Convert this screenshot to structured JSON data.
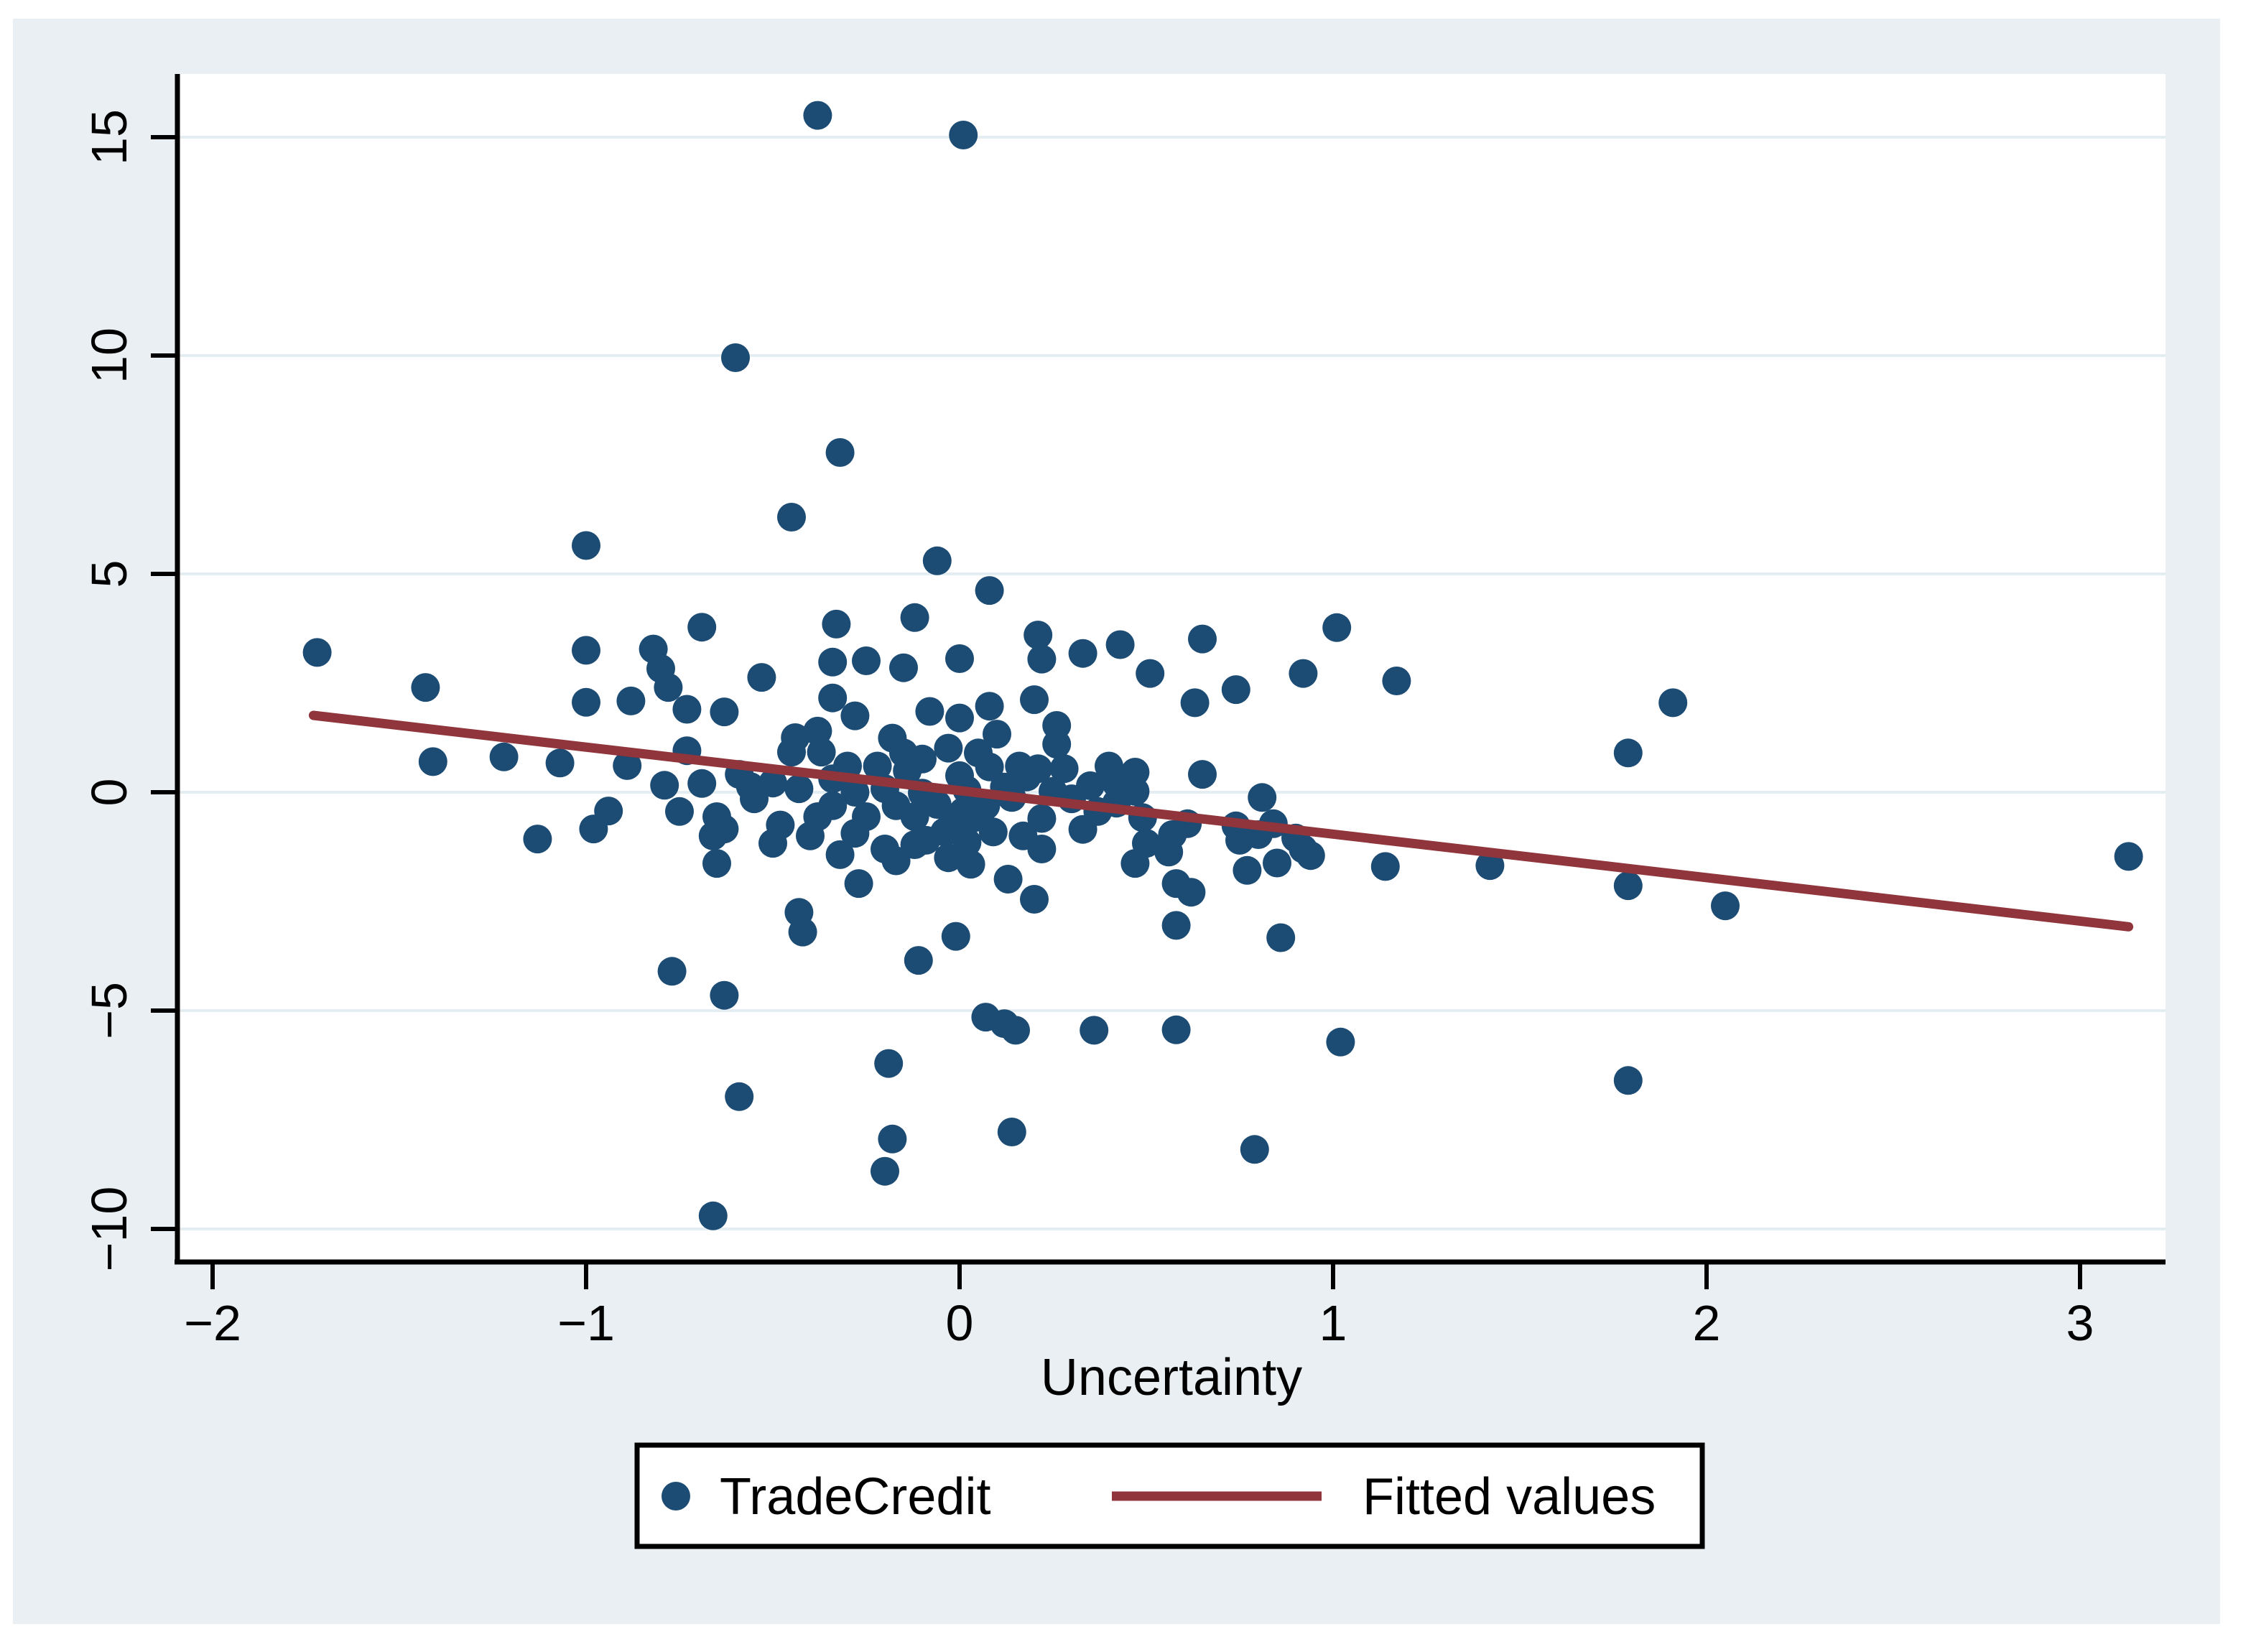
{
  "chart_data": {
    "type": "scatter",
    "title": "",
    "xlabel": "Uncertainty",
    "ylabel": "",
    "xlim": [
      -2.09,
      3.23
    ],
    "ylim": [
      -10.76,
      16.45
    ],
    "x_ticks": [
      -2,
      -1,
      0,
      1,
      2,
      3
    ],
    "y_ticks": [
      -10,
      -5,
      0,
      5,
      10,
      15
    ],
    "grid": "horizontal",
    "legend_position": "bottom-center",
    "legend": [
      {
        "label": "TradeCredit",
        "marker": "dot",
        "color": "#1C4B74"
      },
      {
        "label": "Fitted values",
        "marker": "line",
        "color": "#90353B"
      }
    ],
    "series": [
      {
        "name": "TradeCredit",
        "type": "scatter",
        "color": "#1C4B74",
        "points": [
          [
            -0.38,
            15.5
          ],
          [
            0.01,
            15.05
          ],
          [
            -0.6,
            9.95
          ],
          [
            -0.32,
            7.78
          ],
          [
            -0.45,
            6.3
          ],
          [
            -1.0,
            5.65
          ],
          [
            -0.06,
            5.3
          ],
          [
            0.08,
            4.62
          ],
          [
            -0.12,
            4.0
          ],
          [
            -0.33,
            3.85
          ],
          [
            -0.69,
            3.78
          ],
          [
            0.43,
            3.38
          ],
          [
            0.65,
            3.51
          ],
          [
            1.01,
            3.77
          ],
          [
            -1.72,
            3.2
          ],
          [
            -1.0,
            3.25
          ],
          [
            -0.82,
            3.28
          ],
          [
            -0.8,
            2.83
          ],
          [
            -0.78,
            2.4
          ],
          [
            -0.34,
            2.98
          ],
          [
            -0.25,
            3.01
          ],
          [
            -0.15,
            2.85
          ],
          [
            0.0,
            3.06
          ],
          [
            0.21,
            3.6
          ],
          [
            0.22,
            3.05
          ],
          [
            0.33,
            3.18
          ],
          [
            -0.53,
            2.63
          ],
          [
            0.51,
            2.72
          ],
          [
            0.92,
            2.72
          ],
          [
            1.17,
            2.55
          ],
          [
            -1.43,
            2.4
          ],
          [
            1.91,
            2.05
          ],
          [
            -1.0,
            2.06
          ],
          [
            -0.88,
            2.09
          ],
          [
            0.2,
            2.12
          ],
          [
            -0.34,
            2.16
          ],
          [
            0.74,
            2.35
          ],
          [
            0.63,
            2.05
          ],
          [
            -0.73,
            1.9
          ],
          [
            -0.63,
            1.84
          ],
          [
            -0.28,
            1.75
          ],
          [
            -0.08,
            1.85
          ],
          [
            0.0,
            1.7
          ],
          [
            0.08,
            1.97
          ],
          [
            0.26,
            1.53
          ],
          [
            -0.45,
            0.92
          ],
          [
            -0.44,
            1.25
          ],
          [
            -0.38,
            1.4
          ],
          [
            -0.37,
            0.92
          ],
          [
            0.1,
            1.33
          ],
          [
            -0.18,
            1.24
          ],
          [
            -0.03,
            1.01
          ],
          [
            0.26,
            1.1
          ],
          [
            1.79,
            0.9
          ],
          [
            -1.41,
            0.7
          ],
          [
            -1.22,
            0.81
          ],
          [
            -1.07,
            0.67
          ],
          [
            -0.89,
            0.61
          ],
          [
            -0.73,
            0.95
          ],
          [
            -0.59,
            0.41
          ],
          [
            0.65,
            0.41
          ],
          [
            -0.14,
            0.49
          ],
          [
            -0.1,
            0.76
          ],
          [
            0.08,
            0.58
          ],
          [
            0.28,
            0.54
          ],
          [
            0.21,
            0.54
          ],
          [
            0.47,
            0.46
          ],
          [
            -0.79,
            0.16
          ],
          [
            -0.69,
            0.2
          ],
          [
            -0.5,
            0.21
          ],
          [
            -0.43,
            0.08
          ],
          [
            -0.34,
            0.31
          ],
          [
            -0.28,
            0.0
          ],
          [
            -0.2,
            0.08
          ],
          [
            0.18,
            0.35
          ],
          [
            0.25,
            0.02
          ],
          [
            0.35,
            0.15
          ],
          [
            0.47,
            0.02
          ],
          [
            0.02,
            0.05
          ],
          [
            -0.56,
            0.13
          ],
          [
            0.14,
            -0.12
          ],
          [
            0.0,
            0.38
          ],
          [
            0.42,
            0.2
          ],
          [
            0.81,
            -0.12
          ],
          [
            -0.75,
            -0.44
          ],
          [
            -0.65,
            -0.56
          ],
          [
            -0.38,
            -0.56
          ],
          [
            -0.34,
            -0.31
          ],
          [
            -0.25,
            -0.56
          ],
          [
            -0.17,
            -0.31
          ],
          [
            -0.12,
            -0.56
          ],
          [
            -0.06,
            -0.28
          ],
          [
            0.01,
            -0.44
          ],
          [
            0.07,
            -0.31
          ],
          [
            0.04,
            -0.58
          ],
          [
            0.37,
            -0.44
          ],
          [
            0.49,
            -0.58
          ],
          [
            0.61,
            -0.72
          ],
          [
            0.57,
            -0.97
          ],
          [
            0.74,
            -0.77
          ],
          [
            0.8,
            -0.97
          ],
          [
            0.84,
            -0.72
          ],
          [
            -1.13,
            -1.07
          ],
          [
            -0.98,
            -0.84
          ],
          [
            -0.94,
            -0.43
          ],
          [
            -0.66,
            -1.0
          ],
          [
            -0.63,
            -0.84
          ],
          [
            -0.65,
            -1.63
          ],
          [
            -0.5,
            -1.17
          ],
          [
            -0.4,
            -1.0
          ],
          [
            -0.32,
            -1.43
          ],
          [
            -0.28,
            -0.94
          ],
          [
            -0.2,
            -1.3
          ],
          [
            -0.17,
            -1.57
          ],
          [
            -0.12,
            -1.2
          ],
          [
            -0.09,
            -1.1
          ],
          [
            -0.04,
            -0.91
          ],
          [
            0.02,
            -1.15
          ],
          [
            0.09,
            -0.91
          ],
          [
            0.17,
            -1.0
          ],
          [
            0.22,
            -1.3
          ],
          [
            -0.03,
            -1.5
          ],
          [
            0.03,
            -1.65
          ],
          [
            0.13,
            -1.99
          ],
          [
            0.5,
            -1.17
          ],
          [
            0.56,
            -1.37
          ],
          [
            0.47,
            -1.63
          ],
          [
            0.75,
            -1.1
          ],
          [
            0.77,
            -1.79
          ],
          [
            0.85,
            -1.62
          ],
          [
            0.9,
            -1.05
          ],
          [
            0.92,
            -1.3
          ],
          [
            0.94,
            -1.45
          ],
          [
            1.14,
            -1.7
          ],
          [
            1.42,
            -1.68
          ],
          [
            3.13,
            -1.47
          ],
          [
            -0.27,
            -2.09
          ],
          [
            0.2,
            -2.45
          ],
          [
            0.58,
            -2.09
          ],
          [
            0.62,
            -2.29
          ],
          [
            0.58,
            -3.05
          ],
          [
            -0.43,
            -2.75
          ],
          [
            -0.42,
            -3.2
          ],
          [
            -0.01,
            -3.3
          ],
          [
            0.86,
            -3.33
          ],
          [
            1.79,
            -2.14
          ],
          [
            2.05,
            -2.6
          ],
          [
            -0.77,
            -4.1
          ],
          [
            -0.63,
            -4.65
          ],
          [
            -0.11,
            -3.85
          ],
          [
            0.07,
            -5.15
          ],
          [
            0.12,
            -5.3
          ],
          [
            0.15,
            -5.45
          ],
          [
            0.36,
            -5.45
          ],
          [
            0.58,
            -5.44
          ],
          [
            1.02,
            -5.72
          ],
          [
            -0.19,
            -6.21
          ],
          [
            -0.59,
            -6.97
          ],
          [
            1.79,
            -6.6
          ],
          [
            -0.18,
            -7.94
          ],
          [
            0.14,
            -7.78
          ],
          [
            -0.2,
            -8.68
          ],
          [
            0.79,
            -8.18
          ],
          [
            -0.66,
            -9.7
          ],
          [
            -0.55,
            -0.15
          ],
          [
            -0.48,
            -0.75
          ],
          [
            -0.3,
            0.6
          ],
          [
            -0.22,
            0.6
          ],
          [
            -0.15,
            0.9
          ],
          [
            0.05,
            0.9
          ],
          [
            0.16,
            0.6
          ],
          [
            0.3,
            -0.15
          ],
          [
            0.42,
            -0.25
          ],
          [
            0.33,
            -0.85
          ],
          [
            0.22,
            -0.6
          ],
          [
            -0.1,
            -0.02
          ],
          [
            -0.02,
            -0.7
          ],
          [
            0.12,
            0.12
          ],
          [
            0.4,
            0.6
          ]
        ]
      },
      {
        "name": "Fitted values",
        "type": "line",
        "color": "#90353B",
        "endpoints": [
          [
            -1.73,
            1.76
          ],
          [
            3.13,
            -3.08
          ]
        ]
      }
    ]
  },
  "colors": {
    "page_background": "#FFFFFF",
    "figure_background": "#E9EFF2",
    "plot_background": "#FFFFFF",
    "gridline": "#E4EDF2",
    "axis": "#000000",
    "scatter_dot": "#1C4B74",
    "fitted_line": "#90353B",
    "legend_background": "#FFFFFF",
    "legend_border": "#000000"
  },
  "legend": {
    "series1_label": "TradeCredit",
    "series2_label": "Fitted values"
  },
  "axis": {
    "x_title": "Uncertainty"
  }
}
